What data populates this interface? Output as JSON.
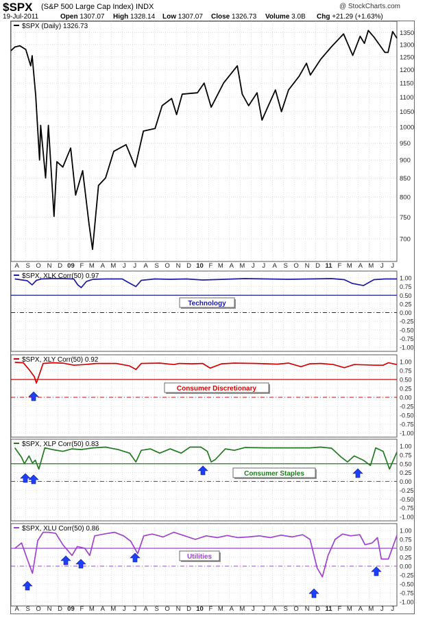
{
  "header": {
    "symbol": "$SPX",
    "name": "(S&P 500 Large Cap Index) INDX",
    "credit": "@ StockCharts.com",
    "date": "19-Jul-2011",
    "open_label": "Open",
    "open": "1307.07",
    "high_label": "High",
    "high": "1328.14",
    "low_label": "Low",
    "low": "1307.07",
    "close_label": "Close",
    "close": "1326.73",
    "volume_label": "Volume",
    "volume": "3.0B",
    "chg_label": "Chg",
    "chg": "+21.29 (+1.63%)"
  },
  "colors": {
    "price": "#000000",
    "technology": "#1a1aa0",
    "consumer_discretionary": "#d40000",
    "consumer_staples": "#1f7a1f",
    "utilities": "#a040d0",
    "arrow": "#1f3fff",
    "grid": "#c8c8c8"
  },
  "icons": {
    "arrow": "up-arrow-icon"
  },
  "chart_data": [
    {
      "type": "line",
      "legend": "$SPX (Daily) 1326.73",
      "y_scale": "log",
      "ylim": [
        660,
        1370
      ],
      "y_ticks": [
        700,
        750,
        800,
        850,
        900,
        950,
        1000,
        1050,
        1100,
        1150,
        1200,
        1250,
        1300,
        1350
      ],
      "x_ticks": [
        "A",
        "S",
        "O",
        "N",
        "D",
        "09",
        "F",
        "M",
        "A",
        "M",
        "J",
        "J",
        "A",
        "S",
        "O",
        "N",
        "D",
        "10",
        "F",
        "M",
        "A",
        "M",
        "J",
        "J",
        "A",
        "S",
        "O",
        "N",
        "D",
        "11",
        "F",
        "M",
        "A",
        "M",
        "J",
        "J"
      ],
      "x_tick_dates": [
        "2008-08",
        "2008-09",
        "2008-10",
        "2008-11",
        "2008-12",
        "2009-01",
        "2009-02",
        "2009-03",
        "2009-04",
        "2009-05",
        "2009-06",
        "2009-07",
        "2009-08",
        "2009-09",
        "2009-10",
        "2009-11",
        "2009-12",
        "2010-01",
        "2010-02",
        "2010-03",
        "2010-04",
        "2010-05",
        "2010-06",
        "2010-07",
        "2010-08",
        "2010-09",
        "2010-10",
        "2010-11",
        "2010-12",
        "2011-01",
        "2011-02",
        "2011-03",
        "2011-04",
        "2011-05",
        "2011-06",
        "2011-07"
      ],
      "series": [
        {
          "name": "$SPX (Daily)",
          "x": [
            "2008-07-21",
            "2008-08-01",
            "2008-08-15",
            "2008-09-01",
            "2008-09-15",
            "2008-09-19",
            "2008-09-29",
            "2008-10-10",
            "2008-10-13",
            "2008-10-27",
            "2008-11-04",
            "2008-11-20",
            "2008-11-28",
            "2008-12-15",
            "2009-01-06",
            "2009-01-20",
            "2009-02-09",
            "2009-02-27",
            "2009-03-09",
            "2009-03-26",
            "2009-04-15",
            "2009-05-08",
            "2009-06-12",
            "2009-07-08",
            "2009-07-31",
            "2009-09-02",
            "2009-09-22",
            "2009-10-19",
            "2009-11-02",
            "2009-11-18",
            "2009-12-31",
            "2010-01-19",
            "2010-02-08",
            "2010-03-15",
            "2010-04-23",
            "2010-05-07",
            "2010-05-25",
            "2010-06-18",
            "2010-07-02",
            "2010-07-20",
            "2010-08-09",
            "2010-08-26",
            "2010-09-15",
            "2010-10-15",
            "2010-11-05",
            "2010-11-16",
            "2010-12-15",
            "2011-01-14",
            "2011-02-18",
            "2011-03-16",
            "2011-04-06",
            "2011-04-18",
            "2011-04-29",
            "2011-05-16",
            "2011-06-15",
            "2011-06-24",
            "2011-07-07",
            "2011-07-19"
          ],
          "values": [
            1275,
            1290,
            1295,
            1280,
            1215,
            1255,
            1105,
            900,
            1005,
            850,
            1005,
            752,
            895,
            880,
            935,
            805,
            870,
            735,
            677,
            830,
            850,
            925,
            945,
            880,
            987,
            995,
            1070,
            1095,
            1040,
            1110,
            1115,
            1150,
            1065,
            1150,
            1215,
            1110,
            1070,
            1115,
            1022,
            1070,
            1125,
            1050,
            1125,
            1175,
            1225,
            1180,
            1240,
            1290,
            1345,
            1256,
            1335,
            1305,
            1360,
            1330,
            1268,
            1268,
            1355,
            1326.73
          ]
        }
      ]
    },
    {
      "type": "line",
      "legend": "$SPX, XLK Corr(50) 0.97",
      "ylim": [
        -1.0,
        1.0
      ],
      "y_ticks": [
        -1.0,
        -0.75,
        -0.5,
        -0.25,
        0.0,
        0.25,
        0.5,
        0.75,
        1.0
      ],
      "y_tick_labels": [
        "-1.00",
        "-0.75",
        "-0.50",
        "-0.25",
        "0.00",
        "0.25",
        "0.50",
        "0.75",
        "1.00"
      ],
      "reference_lines": [
        0.5,
        0.0
      ],
      "annotation": "Technology",
      "series": [
        {
          "name": "$SPX, XLK Corr(50)",
          "x": [
            "2008-08-01",
            "2008-09-05",
            "2008-09-19",
            "2008-10-01",
            "2008-10-15",
            "2008-11-15",
            "2008-12-15",
            "2009-01-15",
            "2009-01-26",
            "2009-02-05",
            "2009-02-20",
            "2009-03-10",
            "2009-04-15",
            "2009-06-01",
            "2009-06-22",
            "2009-07-10",
            "2009-07-25",
            "2009-09-01",
            "2009-10-15",
            "2009-12-01",
            "2010-01-15",
            "2010-02-15",
            "2010-04-15",
            "2010-05-15",
            "2010-07-15",
            "2010-09-15",
            "2010-11-15",
            "2011-01-15",
            "2011-02-20",
            "2011-03-15",
            "2011-04-15",
            "2011-05-15",
            "2011-06-15",
            "2011-07-19"
          ],
          "values": [
            0.97,
            0.92,
            0.8,
            0.93,
            0.97,
            0.98,
            0.98,
            0.97,
            0.8,
            0.72,
            0.9,
            0.96,
            0.97,
            0.97,
            0.85,
            0.75,
            0.93,
            0.97,
            0.96,
            0.97,
            0.94,
            0.95,
            0.97,
            0.98,
            0.97,
            0.96,
            0.97,
            0.98,
            0.95,
            0.84,
            0.78,
            0.95,
            0.97,
            0.97
          ]
        }
      ]
    },
    {
      "type": "line",
      "legend": "$SPX, XLY Corr(50) 0.92",
      "ylim": [
        -1.0,
        1.0
      ],
      "y_ticks": [
        -1.0,
        -0.75,
        -0.5,
        -0.25,
        0.0,
        0.25,
        0.5,
        0.75,
        1.0
      ],
      "y_tick_labels": [
        "-1.00",
        "-0.75",
        "-0.50",
        "-0.25",
        "0.00",
        "0.25",
        "0.50",
        "0.75",
        "1.00"
      ],
      "reference_lines": [
        0.5,
        0.0
      ],
      "annotation": "Consumer Discretionary",
      "series": [
        {
          "name": "$SPX, XLY Corr(50)",
          "x": [
            "2008-08-01",
            "2008-08-25",
            "2008-09-10",
            "2008-09-25",
            "2008-10-01",
            "2008-10-20",
            "2008-11-15",
            "2008-12-15",
            "2009-01-15",
            "2009-02-15",
            "2009-03-20",
            "2009-05-15",
            "2009-06-22",
            "2009-07-10",
            "2009-07-25",
            "2009-09-15",
            "2009-10-25",
            "2009-11-10",
            "2009-12-15",
            "2010-01-15",
            "2010-02-05",
            "2010-03-10",
            "2010-04-15",
            "2010-06-15",
            "2010-08-15",
            "2010-09-15",
            "2010-10-20",
            "2010-11-15",
            "2010-12-15",
            "2011-01-20",
            "2011-02-20",
            "2011-03-20",
            "2011-04-20",
            "2011-05-20",
            "2011-06-10",
            "2011-06-25",
            "2011-07-19"
          ],
          "values": [
            0.98,
            0.97,
            0.78,
            0.58,
            0.4,
            0.95,
            0.97,
            0.96,
            0.9,
            0.92,
            0.95,
            0.95,
            0.88,
            0.78,
            0.95,
            0.96,
            0.92,
            0.95,
            0.94,
            0.95,
            0.82,
            0.94,
            0.96,
            0.95,
            0.93,
            0.96,
            0.86,
            0.94,
            0.95,
            0.92,
            0.83,
            0.92,
            0.91,
            0.9,
            0.9,
            0.97,
            0.92
          ]
        }
      ]
    },
    {
      "type": "line",
      "legend": "$SPX, XLP Corr(50) 0.83",
      "ylim": [
        -1.0,
        1.0
      ],
      "y_ticks": [
        -1.0,
        -0.75,
        -0.5,
        -0.25,
        0.0,
        0.25,
        0.5,
        0.75,
        1.0
      ],
      "y_tick_labels": [
        "-1.00",
        "-0.75",
        "-0.50",
        "-0.25",
        "0.00",
        "0.25",
        "0.50",
        "0.75",
        "1.00"
      ],
      "reference_lines": [
        0.5,
        0.0
      ],
      "annotation": "Consumer Staples",
      "series": [
        {
          "name": "$SPX, XLP Corr(50)",
          "x": [
            "2008-08-01",
            "2008-08-20",
            "2008-08-28",
            "2008-09-10",
            "2008-09-20",
            "2008-09-28",
            "2008-10-08",
            "2008-10-25",
            "2008-11-15",
            "2008-12-15",
            "2009-01-10",
            "2009-02-05",
            "2009-03-10",
            "2009-04-15",
            "2009-05-20",
            "2009-06-22",
            "2009-07-10",
            "2009-07-25",
            "2009-08-20",
            "2009-09-15",
            "2009-10-15",
            "2009-11-15",
            "2009-12-10",
            "2010-01-10",
            "2010-01-28",
            "2010-02-08",
            "2010-02-20",
            "2010-03-20",
            "2010-04-15",
            "2010-05-15",
            "2010-07-15",
            "2010-09-15",
            "2010-11-15",
            "2010-12-15",
            "2011-01-15",
            "2011-02-10",
            "2011-03-01",
            "2011-03-20",
            "2011-04-15",
            "2011-05-05",
            "2011-05-20",
            "2011-06-10",
            "2011-06-28",
            "2011-07-19"
          ],
          "values": [
            0.95,
            0.68,
            0.5,
            0.72,
            0.52,
            0.6,
            0.35,
            0.95,
            0.9,
            0.85,
            0.92,
            0.9,
            0.95,
            0.97,
            0.9,
            0.8,
            0.55,
            0.88,
            0.92,
            0.8,
            0.92,
            0.8,
            0.97,
            0.97,
            0.85,
            0.55,
            0.62,
            0.92,
            0.88,
            0.96,
            0.95,
            0.95,
            0.95,
            0.97,
            0.94,
            0.7,
            0.55,
            0.72,
            0.6,
            0.45,
            0.95,
            0.85,
            0.35,
            0.83
          ]
        }
      ]
    },
    {
      "type": "line",
      "legend": "$SPX, XLU Corr(50) 0.86",
      "ylim": [
        -1.0,
        1.0
      ],
      "y_ticks": [
        -1.0,
        -0.75,
        -0.5,
        -0.25,
        0.0,
        0.25,
        0.5,
        0.75,
        1.0
      ],
      "y_tick_labels": [
        "-1.00",
        "-0.75",
        "-0.50",
        "-0.25",
        "0.00",
        "0.25",
        "0.50",
        "0.75",
        "1.00"
      ],
      "reference_lines": [
        0.5,
        0.0
      ],
      "annotation": "Utilities",
      "series": [
        {
          "name": "$SPX, XLU Corr(50)",
          "x": [
            "2008-08-01",
            "2008-08-20",
            "2008-09-05",
            "2008-09-20",
            "2008-10-05",
            "2008-10-20",
            "2008-11-05",
            "2008-11-25",
            "2008-12-15",
            "2009-01-10",
            "2009-01-25",
            "2009-02-15",
            "2009-03-01",
            "2009-03-15",
            "2009-04-10",
            "2009-05-10",
            "2009-06-05",
            "2009-06-25",
            "2009-07-15",
            "2009-08-01",
            "2009-08-25",
            "2009-09-25",
            "2009-10-25",
            "2009-11-25",
            "2009-12-25",
            "2010-01-25",
            "2010-02-25",
            "2010-03-25",
            "2010-04-25",
            "2010-05-25",
            "2010-06-25",
            "2010-07-25",
            "2010-08-25",
            "2010-09-25",
            "2010-10-25",
            "2010-11-15",
            "2010-12-05",
            "2010-12-20",
            "2011-01-05",
            "2011-01-25",
            "2011-02-15",
            "2011-03-10",
            "2011-04-05",
            "2011-04-20",
            "2011-05-10",
            "2011-05-25",
            "2011-06-05",
            "2011-06-25",
            "2011-07-19"
          ],
          "values": [
            0.5,
            0.65,
            0.2,
            -0.2,
            0.72,
            0.95,
            0.95,
            0.92,
            0.6,
            0.3,
            0.55,
            0.5,
            0.3,
            0.85,
            0.9,
            0.95,
            0.85,
            0.7,
            0.35,
            0.85,
            0.9,
            0.82,
            0.95,
            0.85,
            0.75,
            0.85,
            0.8,
            0.86,
            0.8,
            0.82,
            0.85,
            0.8,
            0.87,
            0.82,
            0.88,
            0.75,
            -0.05,
            -0.3,
            0.3,
            0.75,
            0.9,
            0.85,
            0.88,
            0.6,
            0.65,
            0.8,
            0.2,
            0.2,
            0.86
          ]
        }
      ]
    }
  ]
}
